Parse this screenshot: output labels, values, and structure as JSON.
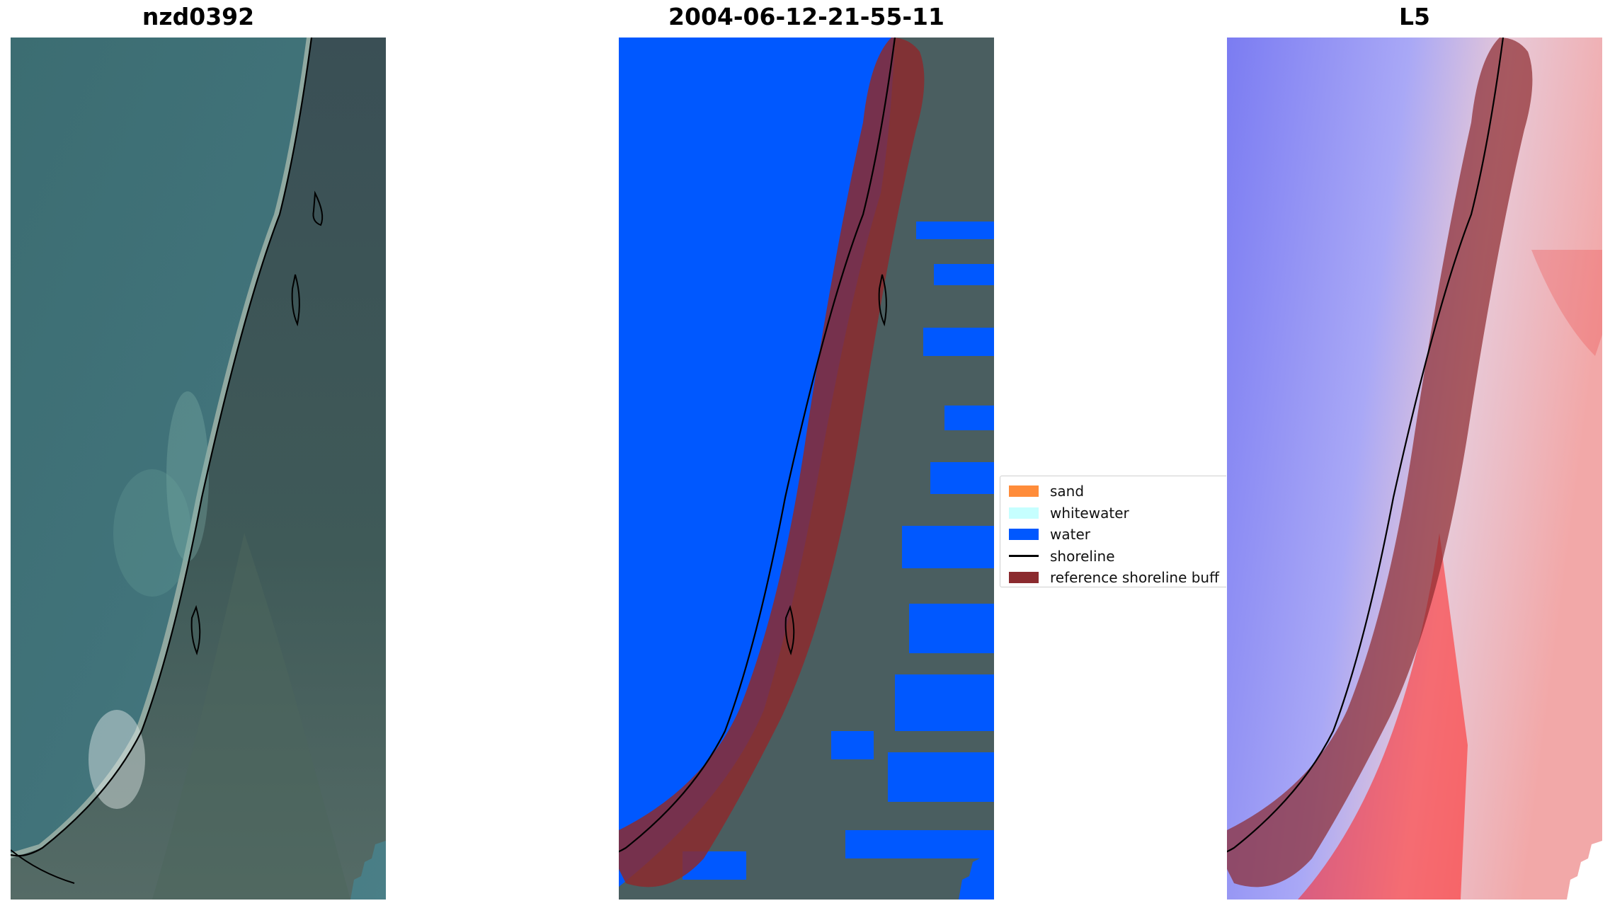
{
  "panels": {
    "rgb": {
      "title": "nzd0392"
    },
    "classified": {
      "title": "2004-06-12-21-55-11"
    },
    "index": {
      "title": "L5"
    }
  },
  "legend": {
    "items": [
      {
        "label": "sand",
        "color": "#ff8c3a",
        "kind": "patch"
      },
      {
        "label": "whitewater",
        "color": "#c6ffff",
        "kind": "patch"
      },
      {
        "label": "water",
        "color": "#0058ff",
        "kind": "patch"
      },
      {
        "label": "shoreline",
        "color": "#000000",
        "kind": "line"
      },
      {
        "label": "reference shoreline buff",
        "color": "#8b2a2e",
        "kind": "patch"
      }
    ]
  },
  "colors": {
    "water_class": "#0058ff",
    "buffer": "#8b2a2e",
    "shoreline": "#000000",
    "sea_rgb": "#3e6e74",
    "land_rgb": "#3c5258"
  }
}
